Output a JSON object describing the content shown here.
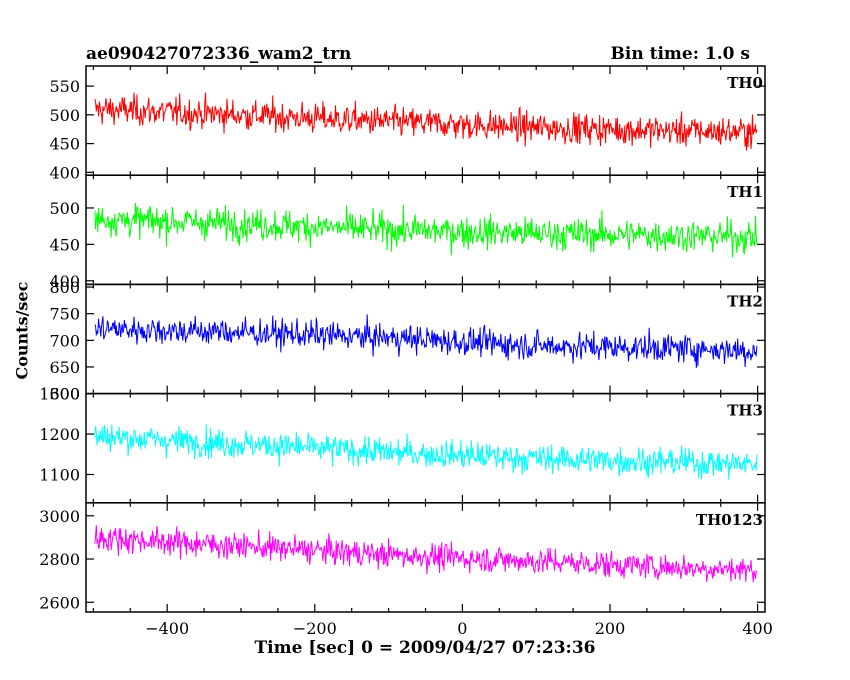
{
  "header": {
    "title": "ae090427072336_wam2_trn",
    "bin_time": "Bin time: 1.0 s"
  },
  "axes": {
    "ylabel": "Counts/sec",
    "xlabel": "Time [sec] 0 = 2009/04/27 07:23:36"
  },
  "chart_data": {
    "type": "line",
    "x_range": [
      -510,
      410
    ],
    "x_ticks": [
      -400,
      -200,
      0,
      200,
      400
    ],
    "x_tick_labels": [
      "−400",
      "−200",
      "0",
      "200",
      "400"
    ],
    "bin_time_s": 1.0,
    "grid": false,
    "panels": [
      {
        "name": "TH0",
        "color": "#ff0000",
        "ylim": [
          395,
          585
        ],
        "y_ticks": [
          400,
          450,
          500,
          550
        ],
        "trend": {
          "x": [
            -500,
            -300,
            -100,
            100,
            300,
            400
          ],
          "y": [
            510,
            500,
            488,
            478,
            472,
            470
          ]
        },
        "spread": 30
      },
      {
        "name": "TH1",
        "color": "#00ff00",
        "ylim": [
          395,
          545
        ],
        "y_ticks": [
          400,
          450,
          500
        ],
        "trend": {
          "x": [
            -500,
            -300,
            -100,
            100,
            300,
            400
          ],
          "y": [
            485,
            478,
            470,
            465,
            462,
            460
          ]
        },
        "spread": 25
      },
      {
        "name": "TH2",
        "color": "#0000ff",
        "ylim": [
          600,
          805
        ],
        "y_ticks": [
          600,
          650,
          700,
          750,
          800
        ],
        "trend": {
          "x": [
            -500,
            -300,
            -100,
            100,
            300,
            400
          ],
          "y": [
            722,
            715,
            705,
            690,
            685,
            680
          ]
        },
        "spread": 30
      },
      {
        "name": "TH3",
        "color": "#00ffff",
        "ylim": [
          1030,
          1300
        ],
        "y_ticks": [
          1100,
          1200,
          1300
        ],
        "trend": {
          "x": [
            -500,
            -300,
            -100,
            100,
            300,
            400
          ],
          "y": [
            1195,
            1175,
            1155,
            1140,
            1130,
            1125
          ]
        },
        "spread": 40
      },
      {
        "name": "TH0123",
        "color": "#ff00ff",
        "ylim": [
          2555,
          3060
        ],
        "y_ticks": [
          2600,
          2800,
          3000
        ],
        "trend": {
          "x": [
            -500,
            -300,
            -100,
            100,
            300,
            400
          ],
          "y": [
            2900,
            2860,
            2820,
            2790,
            2760,
            2750
          ]
        },
        "spread": 70
      }
    ]
  }
}
